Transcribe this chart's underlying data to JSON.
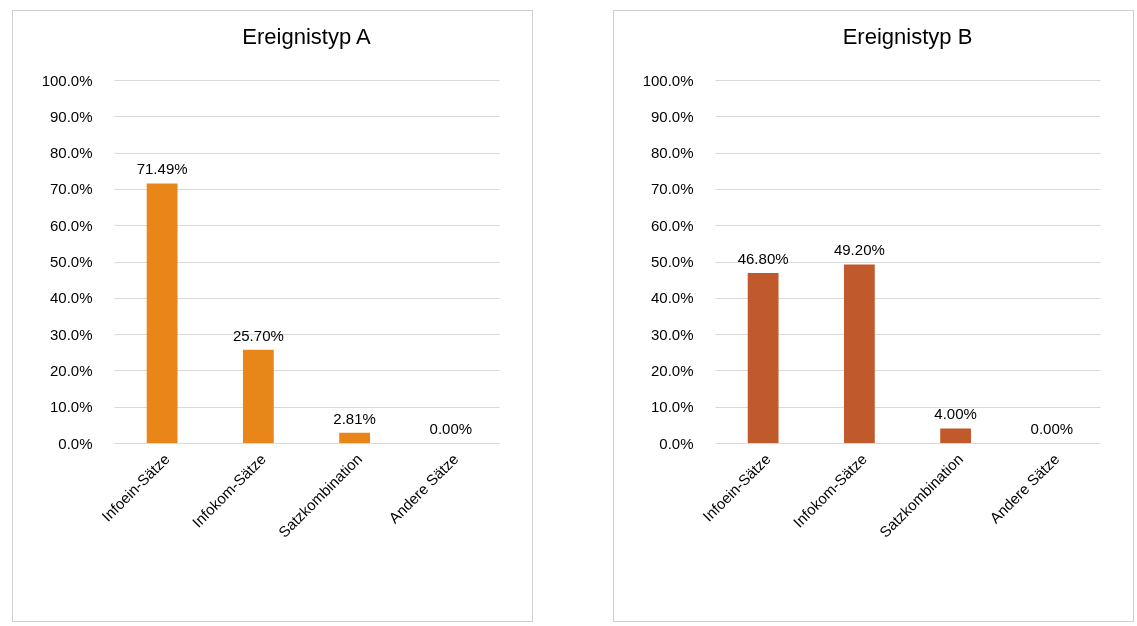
{
  "chart_data": [
    {
      "type": "bar",
      "title": "Ereignistyp A",
      "categories": [
        "Infoein-Sätze",
        "Infokom-Sätze",
        "Satzkombination",
        "Andere Sätze"
      ],
      "values": [
        71.49,
        25.7,
        2.81,
        0.0
      ],
      "value_labels": [
        "71.49%",
        "25.70%",
        "2.81%",
        "0.00%"
      ],
      "color": "#e8861a",
      "ylim": [
        0,
        100
      ],
      "yticks": [
        {
          "value": 0,
          "label": "0.0%"
        },
        {
          "value": 10,
          "label": "10.0%"
        },
        {
          "value": 20,
          "label": "20.0%"
        },
        {
          "value": 30,
          "label": "30.0%"
        },
        {
          "value": 40,
          "label": "40.0%"
        },
        {
          "value": 50,
          "label": "50.0%"
        },
        {
          "value": 60,
          "label": "60.0%"
        },
        {
          "value": 70,
          "label": "70.0%"
        },
        {
          "value": 80,
          "label": "80.0%"
        },
        {
          "value": 90,
          "label": "90.0%"
        },
        {
          "value": 100,
          "label": "100.0%"
        }
      ],
      "grid": "y"
    },
    {
      "type": "bar",
      "title": "Ereignistyp B",
      "categories": [
        "Infoein-Sätze",
        "Infokom-Sätze",
        "Satzkombination",
        "Andere Sätze"
      ],
      "values": [
        46.8,
        49.2,
        4.0,
        0.0
      ],
      "value_labels": [
        "46.80%",
        "49.20%",
        "4.00%",
        "0.00%"
      ],
      "color": "#c05a2c",
      "ylim": [
        0,
        100
      ],
      "yticks": [
        {
          "value": 0,
          "label": "0.0%"
        },
        {
          "value": 10,
          "label": "10.0%"
        },
        {
          "value": 20,
          "label": "20.0%"
        },
        {
          "value": 30,
          "label": "30.0%"
        },
        {
          "value": 40,
          "label": "40.0%"
        },
        {
          "value": 50,
          "label": "50.0%"
        },
        {
          "value": 60,
          "label": "60.0%"
        },
        {
          "value": 70,
          "label": "70.0%"
        },
        {
          "value": 80,
          "label": "80.0%"
        },
        {
          "value": 90,
          "label": "90.0%"
        },
        {
          "value": 100,
          "label": "100.0%"
        }
      ],
      "grid": "y"
    }
  ]
}
